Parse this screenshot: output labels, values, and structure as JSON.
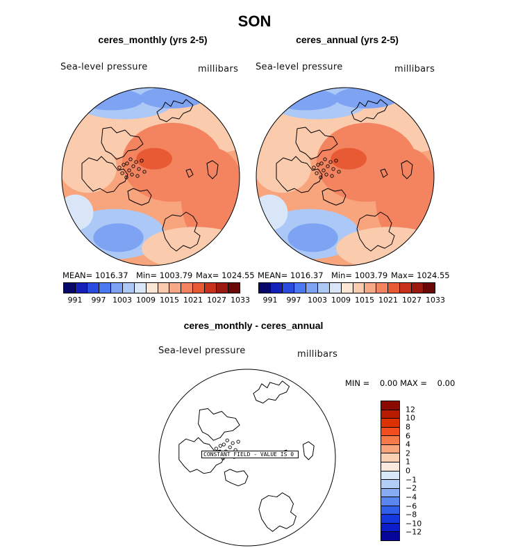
{
  "page": {
    "title": "SON"
  },
  "panels": [
    {
      "title": "ceres_monthly (yrs 2-5)",
      "variable": "Sea-level pressure",
      "units": "millibars",
      "mean_label": "MEAN= 1016.37",
      "min_label": "Min= 1003.79",
      "max_label": "Max= 1024.55"
    },
    {
      "title": "ceres_annual (yrs 2-5)",
      "variable": "Sea-level pressure",
      "units": "millibars",
      "mean_label": "MEAN= 1016.37",
      "min_label": "Min= 1003.79",
      "max_label": "Max= 1024.55"
    }
  ],
  "diff_panel": {
    "title": "ceres_monthly - ceres_annual",
    "variable": "Sea-level pressure",
    "units": "millibars",
    "minmax_label": "MIN =    0.00 MAX =    0.00",
    "constant_label": "CONSTANT FIELD - VALUE IS 0"
  },
  "chart_data": [
    {
      "type": "heatmap",
      "projection": "north polar stereographic",
      "title": "ceres_monthly (yrs 2-5)",
      "variable": "Sea-level pressure",
      "units": "millibars",
      "mean": 1016.37,
      "min": 1003.79,
      "max": 1024.55,
      "colorbar": {
        "orientation": "horizontal",
        "colors": [
          "#08086b",
          "#1420b8",
          "#2a4be0",
          "#4a78f0",
          "#7ea3f3",
          "#abc8f6",
          "#d8e6f8",
          "#fbe6d6",
          "#fbcbad",
          "#f7a887",
          "#f3845f",
          "#e85a33",
          "#c8321d",
          "#9a1a10",
          "#6a0808"
        ],
        "tick_labels": [
          "991",
          "997",
          "1003",
          "1009",
          "1015",
          "1021",
          "1027",
          "1033"
        ]
      }
    },
    {
      "type": "heatmap",
      "projection": "north polar stereographic",
      "title": "ceres_annual (yrs 2-5)",
      "variable": "Sea-level pressure",
      "units": "millibars",
      "mean": 1016.37,
      "min": 1003.79,
      "max": 1024.55,
      "colorbar": {
        "orientation": "horizontal",
        "colors": [
          "#08086b",
          "#1420b8",
          "#2a4be0",
          "#4a78f0",
          "#7ea3f3",
          "#abc8f6",
          "#d8e6f8",
          "#fbe6d6",
          "#fbcbad",
          "#f7a887",
          "#f3845f",
          "#e85a33",
          "#c8321d",
          "#9a1a10",
          "#6a0808"
        ],
        "tick_labels": [
          "991",
          "997",
          "1003",
          "1009",
          "1015",
          "1021",
          "1027",
          "1033"
        ]
      }
    },
    {
      "type": "heatmap",
      "projection": "north polar stereographic",
      "title": "ceres_monthly - ceres_annual",
      "variable": "Sea-level pressure",
      "units": "millibars",
      "min": 0.0,
      "max": 0.0,
      "constant_value": 0,
      "colorbar": {
        "orientation": "vertical",
        "colors": [
          "#8b0a00",
          "#b81c00",
          "#db3200",
          "#f04e1e",
          "#f57a4a",
          "#f8a47c",
          "#fbcfb2",
          "#fde9de",
          "#d9e7fb",
          "#b2cdf7",
          "#86acf4",
          "#5a87ef",
          "#2f5ee8",
          "#1438e0",
          "#0a1dc8",
          "#06069a"
        ],
        "tick_labels": [
          "12",
          "10",
          "8",
          "6",
          "4",
          "2",
          "1",
          "0",
          "−1",
          "−2",
          "−4",
          "−6",
          "−8",
          "−10",
          "−12"
        ]
      }
    }
  ]
}
